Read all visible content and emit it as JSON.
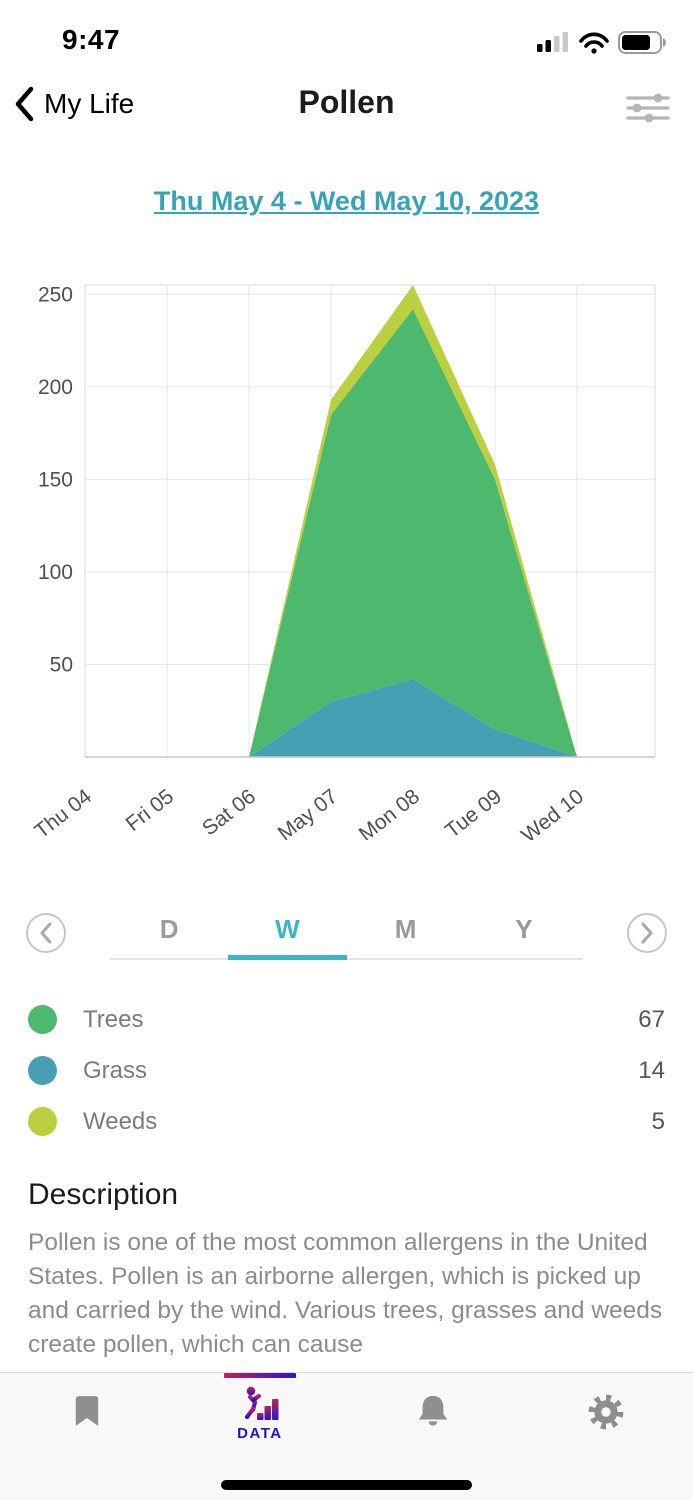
{
  "status_bar": {
    "time": "9:47"
  },
  "nav": {
    "back_label": "My Life",
    "title": "Pollen"
  },
  "date_range": "Thu May 4 - Wed May 10, 2023",
  "chart_data": {
    "type": "area",
    "stacked": true,
    "title": "",
    "xlabel": "",
    "ylabel": "",
    "categories": [
      "Thu 04",
      "Fri 05",
      "Sat 06",
      "May 07",
      "Mon 08",
      "Tue 09",
      "Wed 10"
    ],
    "series": [
      {
        "name": "Grass",
        "color": "#479FB5",
        "values": [
          0,
          0,
          0,
          30,
          42,
          15,
          0
        ]
      },
      {
        "name": "Trees",
        "color": "#4CB96E",
        "values": [
          0,
          0,
          0,
          155,
          200,
          135,
          0
        ]
      },
      {
        "name": "Weeds",
        "color": "#BCCF3E",
        "values": [
          0,
          0,
          0,
          8,
          13,
          8,
          0
        ]
      }
    ],
    "ylim": [
      0,
      255
    ],
    "yticks": [
      50,
      100,
      150,
      200,
      250
    ],
    "grid": true,
    "legend_position": "below-as-list"
  },
  "period_tabs": {
    "options": [
      "D",
      "W",
      "M",
      "Y"
    ],
    "selected": "W"
  },
  "legend": [
    {
      "label": "Trees",
      "value": 67,
      "color": "#4CB96E"
    },
    {
      "label": "Grass",
      "value": 14,
      "color": "#479FB5"
    },
    {
      "label": "Weeds",
      "value": 5,
      "color": "#BCCF3E"
    }
  ],
  "description": {
    "heading": "Description",
    "body": "Pollen is one of the most common allergens in the United States. Pollen is an airborne allergen, which is picked up and carried by the wind. Various trees, grasses and weeds create pollen, which can cause"
  },
  "tab_bar": {
    "items": [
      {
        "name": "journal",
        "icon": "bookmark-icon",
        "label": ""
      },
      {
        "name": "data",
        "icon": "stairs-person-icon",
        "label": "DATA",
        "active": true
      },
      {
        "name": "alerts",
        "icon": "bell-icon",
        "label": ""
      },
      {
        "name": "settings",
        "icon": "gear-icon",
        "label": ""
      }
    ]
  },
  "icons": {
    "back": "chevron-left-icon",
    "top_right": "filter-sliders-icon",
    "prev": "chevron-left-circle-icon",
    "next": "chevron-right-circle-icon"
  },
  "colors": {
    "accent": "#37a3b5",
    "tab_selected": "#3eb3c5",
    "data_tab_gradient_start": "#c02255",
    "data_tab_gradient_end": "#2516ce"
  }
}
